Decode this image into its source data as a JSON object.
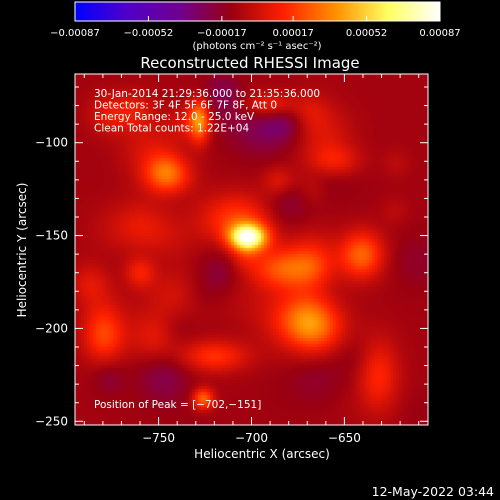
{
  "chart_data": {
    "type": "heatmap",
    "title": "Reconstructed RHESSI Image",
    "xlabel": "Heliocentric X (arcsec)",
    "ylabel": "Heliocentric Y (arcsec)",
    "xlim": [
      -795,
      -605
    ],
    "ylim": [
      -252,
      -63
    ],
    "x_ticks": [
      -750,
      -700,
      -650
    ],
    "y_ticks": [
      -100,
      -150,
      -200,
      -250
    ],
    "x_tick_labels": [
      "−750",
      "−700",
      "−650"
    ],
    "y_tick_labels": [
      "−100",
      "−150",
      "−200",
      "−250"
    ],
    "colorbar": {
      "min": -0.00087,
      "max": 0.00087,
      "ticks": [
        -0.00087,
        -0.00052,
        -0.00017,
        0.00017,
        0.00052,
        0.00087
      ],
      "tick_labels": [
        "−0.00087",
        "−0.00052",
        "−0.00017",
        "0.00017",
        "0.00052",
        "0.00087"
      ],
      "units_label": "(photons cm⁻² s⁻¹ asec⁻²)",
      "colormap": [
        "#0000ff",
        "#5000c8",
        "#700090",
        "#9a0010",
        "#ff2000",
        "#ff9000",
        "#ffff60",
        "#ffffff"
      ]
    },
    "info_lines": [
      "30-Jan-2014 21:29:36.000 to 21:35:36.000",
      "Detectors: 3F 4F 5F 6F 7F 8F, Att 0",
      "Energy Range: 12.0 - 25.0 keV",
      "Clean     Total counts: 1.22E+04"
    ],
    "peak_label": "Position of Peak = [−702,−151]",
    "peak_position": [
      -702,
      -151
    ],
    "sources": [
      {
        "x": -702,
        "y": -151,
        "sx": 7,
        "sy": 5,
        "amp": 1.0
      },
      {
        "x": -708,
        "y": -142,
        "sx": 14,
        "sy": 10,
        "amp": 0.35
      },
      {
        "x": -728,
        "y": -88,
        "sx": 4,
        "sy": 8,
        "amp": 0.55
      },
      {
        "x": -745,
        "y": -118,
        "sx": 9,
        "sy": 7,
        "amp": 0.35
      },
      {
        "x": -683,
        "y": -168,
        "sx": 13,
        "sy": 8,
        "amp": 0.4
      },
      {
        "x": -665,
        "y": -200,
        "sx": 11,
        "sy": 10,
        "amp": 0.38
      },
      {
        "x": -640,
        "y": -160,
        "sx": 8,
        "sy": 9,
        "amp": 0.3
      },
      {
        "x": -690,
        "y": -80,
        "sx": 10,
        "sy": 5,
        "amp": 0.28
      },
      {
        "x": -720,
        "y": -215,
        "sx": 13,
        "sy": 6,
        "amp": 0.3
      },
      {
        "x": -780,
        "y": -200,
        "sx": 8,
        "sy": 12,
        "amp": 0.25
      },
      {
        "x": -726,
        "y": -238,
        "sx": 4,
        "sy": 4,
        "amp": 0.45
      },
      {
        "x": -632,
        "y": -225,
        "sx": 8,
        "sy": 14,
        "amp": 0.28
      },
      {
        "x": -655,
        "y": -110,
        "sx": 10,
        "sy": 6,
        "amp": 0.22
      },
      {
        "x": -760,
        "y": -170,
        "sx": 6,
        "sy": 6,
        "amp": 0.25
      }
    ]
  },
  "timestamp": "12-May-2022 03:44"
}
